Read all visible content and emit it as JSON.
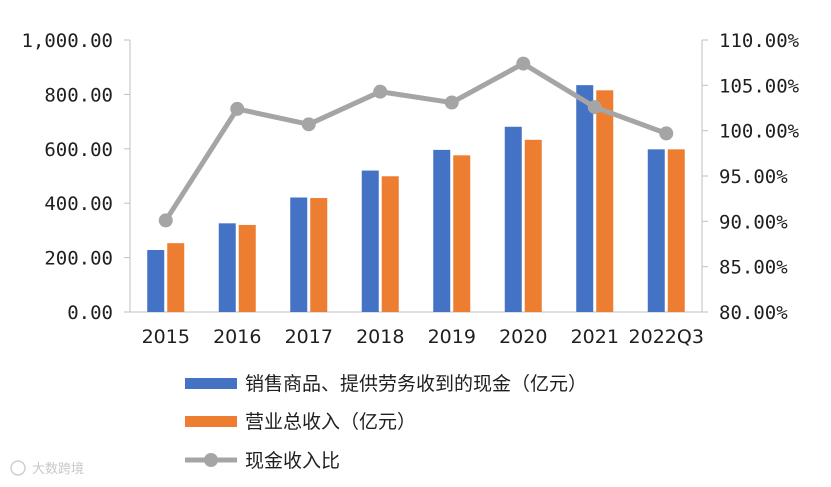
{
  "chart_data": {
    "type": "bar",
    "categories": [
      "2015",
      "2016",
      "2017",
      "2018",
      "2019",
      "2020",
      "2021",
      "2022Q3"
    ],
    "series": [
      {
        "name": "销售商品、提供劳务收到的现金（亿元）",
        "type": "bar",
        "axis": "left",
        "color": "#4472C4",
        "values": [
          228,
          326,
          421,
          520,
          596,
          681,
          834,
          598
        ]
      },
      {
        "name": "营业总收入（亿元）",
        "type": "bar",
        "axis": "left",
        "color": "#ED7D31",
        "values": [
          253,
          320,
          419,
          499,
          576,
          633,
          815,
          598
        ]
      },
      {
        "name": "现金收入比",
        "type": "line",
        "axis": "right",
        "color": "#A5A5A5",
        "values": [
          90.1,
          102.4,
          100.7,
          104.3,
          103.1,
          107.4,
          102.6,
          99.7
        ]
      }
    ],
    "y_left": {
      "min": 0,
      "max": 1000,
      "step": 200,
      "tick_labels": [
        "0.00",
        "200.00",
        "400.00",
        "600.00",
        "800.00",
        "1,000.00"
      ]
    },
    "y_right": {
      "min": 80,
      "max": 110,
      "step": 5,
      "tick_labels": [
        "80.00%",
        "85.00%",
        "90.00%",
        "95.00%",
        "100.00%",
        "105.00%",
        "110.00%"
      ]
    },
    "grid": false,
    "legend_position": "bottom",
    "watermark": "大数跨境"
  }
}
